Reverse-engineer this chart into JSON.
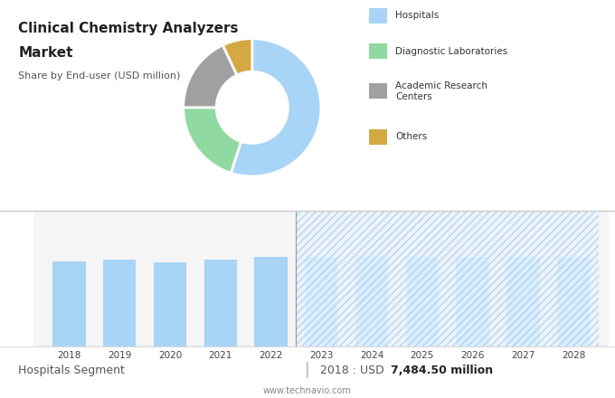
{
  "title_line1": "Clinical Chemistry Analyzers",
  "title_line2": "Market",
  "subtitle": "Share by End-user (USD million)",
  "pie_labels": [
    "Hospitals",
    "Diagnostic Laboratories",
    "Academic Research Centers",
    "Others"
  ],
  "pie_values": [
    55,
    20,
    18,
    7
  ],
  "pie_colors": [
    "#a8d4f5",
    "#90d9a0",
    "#a0a0a0",
    "#d4a843"
  ],
  "legend_labels": [
    "Hospitals",
    "Diagnostic Laboratories",
    "Academic Research\nCenters",
    "Others"
  ],
  "bar_years_solid": [
    2018,
    2019,
    2020,
    2021,
    2022
  ],
  "bar_values_solid": [
    7484.5,
    7700,
    7450,
    7680,
    7950
  ],
  "bar_years_hatch": [
    2023,
    2024,
    2025,
    2026,
    2027,
    2028
  ],
  "bar_values_hatch": [
    7950,
    7950,
    7950,
    7950,
    7950,
    7950
  ],
  "bar_color_solid": "#a8d4f5",
  "bar_color_hatch_face": "#ddeeff",
  "bar_color_hatch_edge": "#a8d4f5",
  "hatch_pattern": "////",
  "footer_left": "Hospitals Segment",
  "footer_text": "2018 : USD ",
  "footer_value": "7,484.50 million",
  "footer_url": "www.technavio.com",
  "top_bg_color": "#e8e8e8",
  "bottom_bg_color": "#f5f5f5",
  "grid_color": "#d0d0d0",
  "bar_ylim": [
    0,
    12000
  ]
}
